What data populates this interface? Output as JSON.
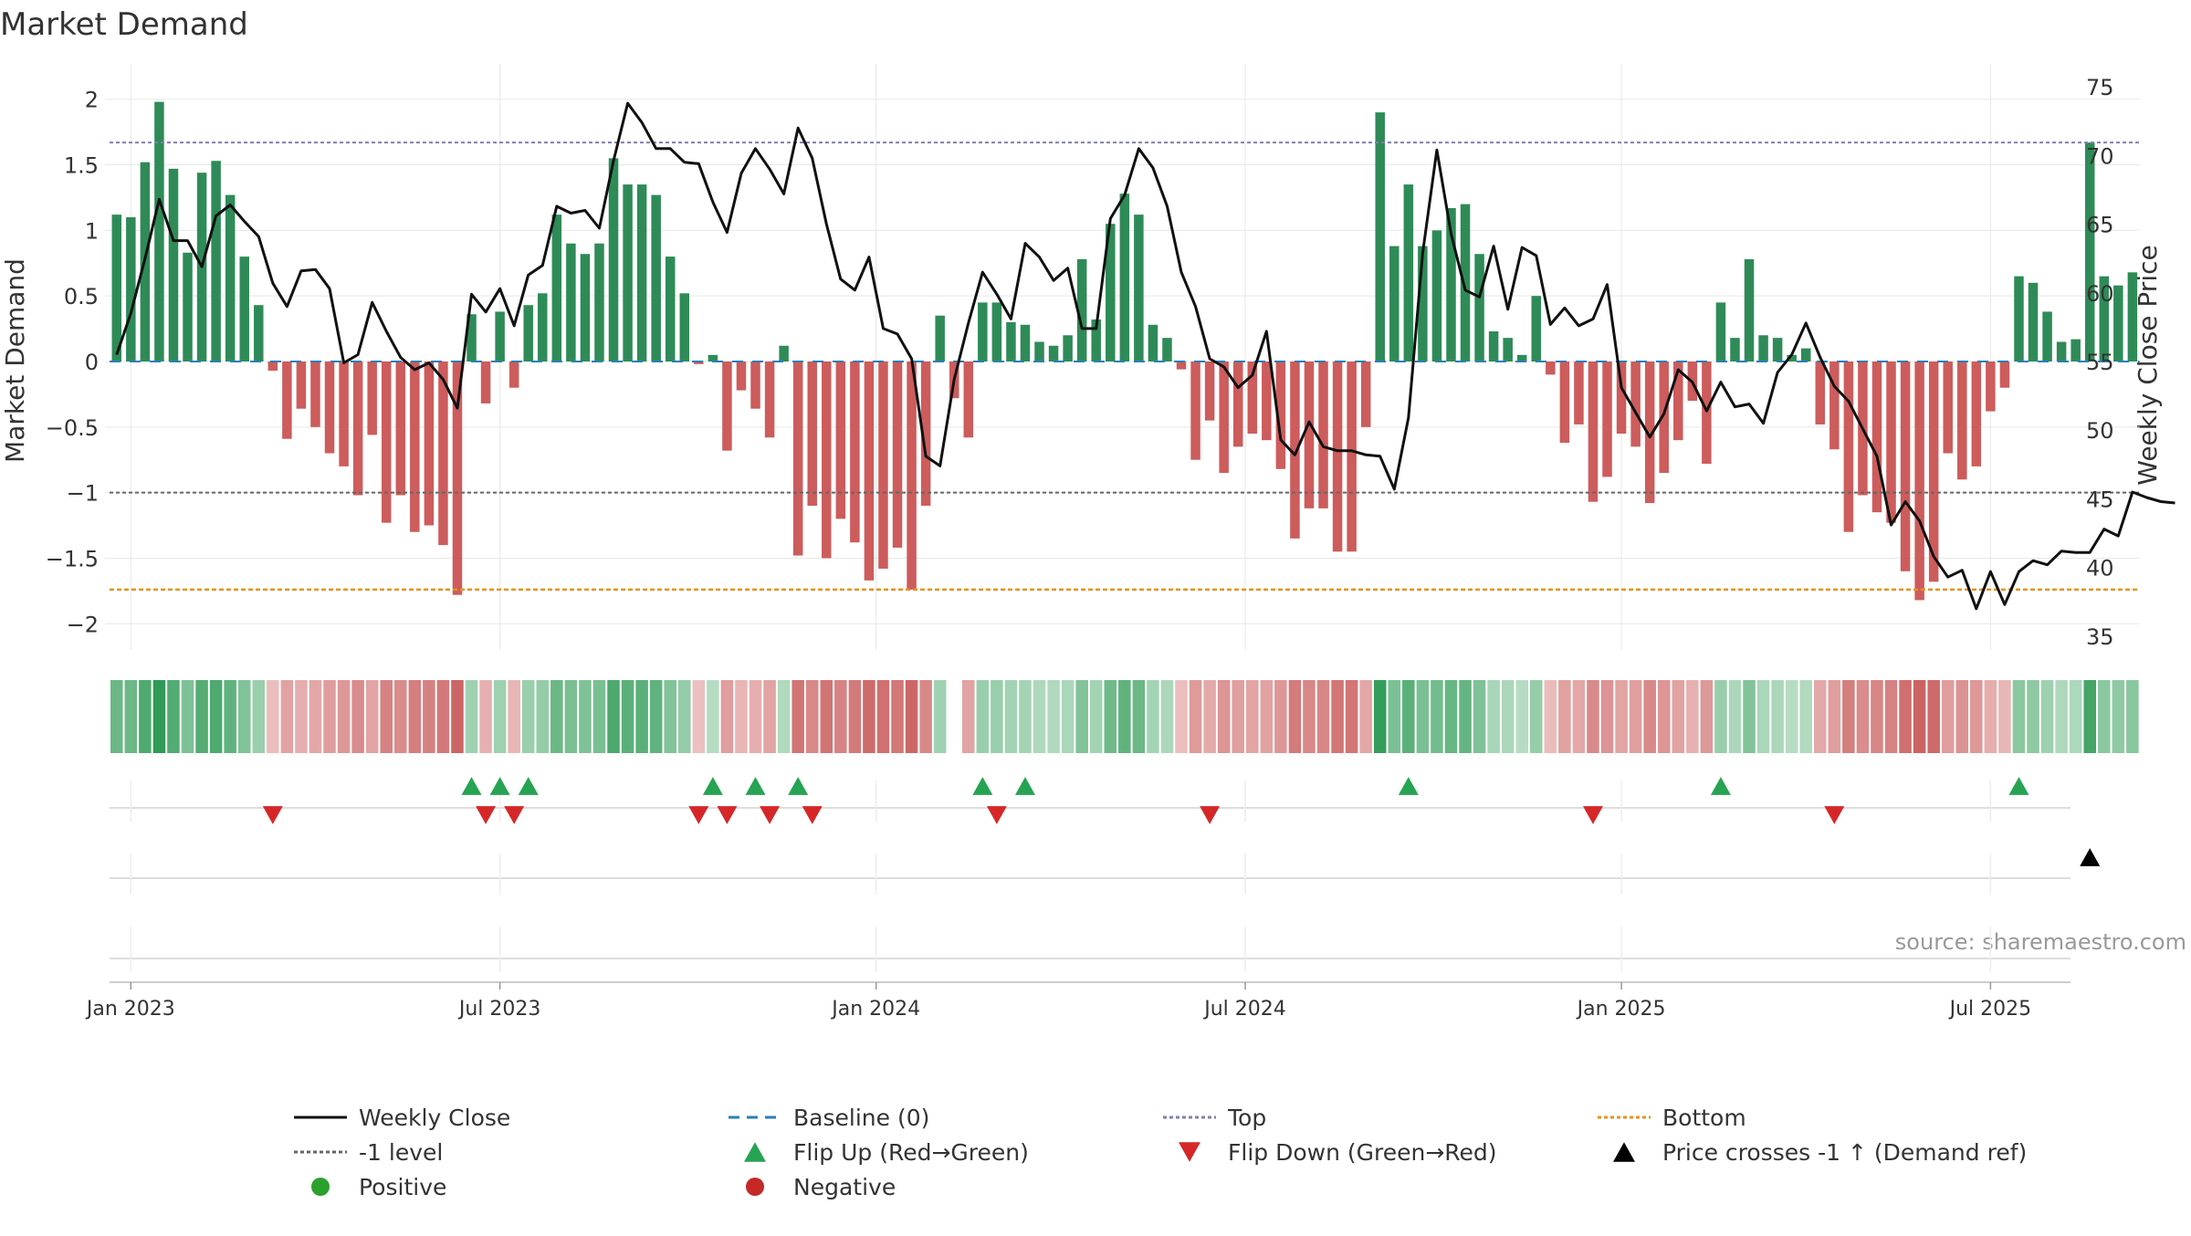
{
  "chart_data": {
    "type": "bar",
    "title": "Market Demand",
    "ylabel_left": "Market Demand",
    "ylabel_right": "Weekly Close Price",
    "ylim_left": [
      -2.2,
      2.2
    ],
    "ylim_right": [
      34,
      76
    ],
    "yticks_left": [
      2,
      1.5,
      1,
      0.5,
      0,
      -0.5,
      -1,
      -1.5,
      -2
    ],
    "ytick_labels_left": [
      "2",
      "1.5",
      "1",
      "0.5",
      "0",
      "−0.5",
      "−1",
      "−1.5",
      "−2"
    ],
    "yticks_right": [
      75,
      70,
      65,
      60,
      55,
      50,
      45,
      40,
      35
    ],
    "ytick_labels_right": [
      "75",
      "70",
      "65",
      "60",
      "55",
      "50",
      "45",
      "40",
      "35"
    ],
    "x_tick_labels": [
      "Jan 2023",
      "Jul 2023",
      "Jan 2024",
      "Jul 2024",
      "Jan 2025",
      "Jul 2025"
    ],
    "x_tick_positions": [
      1,
      27,
      53.5,
      79.5,
      106,
      132
    ],
    "top_level": 1.67,
    "bottom_level": -1.74,
    "minus_one_level": -1,
    "baseline": 0,
    "demand": [
      1.12,
      1.1,
      1.52,
      1.98,
      1.47,
      0.83,
      1.44,
      1.53,
      1.27,
      0.8,
      0.43,
      -0.07,
      -0.59,
      -0.36,
      -0.5,
      -0.7,
      -0.8,
      -1.02,
      -0.56,
      -1.23,
      -1.02,
      -1.3,
      -1.25,
      -1.4,
      -1.78,
      0.36,
      -0.32,
      0.38,
      -0.2,
      0.43,
      0.52,
      1.12,
      0.9,
      0.82,
      0.9,
      1.55,
      1.35,
      1.35,
      1.27,
      0.8,
      0.52,
      -0.02,
      0.05,
      -0.68,
      -0.22,
      -0.36,
      -0.58,
      0.12,
      -1.48,
      -1.1,
      -1.5,
      -1.2,
      -1.38,
      -1.67,
      -1.58,
      -1.42,
      -1.74,
      -1.1,
      0.35,
      -0.28,
      -0.58,
      0.45,
      0.45,
      0.3,
      0.28,
      0.15,
      0.12,
      0.2,
      0.78,
      0.32,
      1.05,
      1.28,
      1.12,
      0.28,
      0.18,
      -0.06,
      -0.75,
      -0.45,
      -0.85,
      -0.65,
      -0.55,
      -0.6,
      -0.82,
      -1.35,
      -1.12,
      -1.12,
      -1.45,
      -1.45,
      -0.5,
      1.9,
      0.88,
      1.35,
      0.88,
      1.0,
      1.17,
      1.2,
      0.82,
      0.23,
      0.18,
      0.05,
      0.5,
      -0.1,
      -0.62,
      -0.48,
      -1.07,
      -0.88,
      -0.55,
      -0.65,
      -1.08,
      -0.85,
      -0.6,
      -0.3,
      -0.78,
      0.45,
      0.18,
      0.78,
      0.2,
      0.18,
      0.05,
      0.1,
      -0.48,
      -0.67,
      -1.3,
      -1.02,
      -1.15,
      -1.23,
      -1.6,
      -1.82,
      -1.68,
      -0.7,
      -0.9,
      -0.8,
      -0.38,
      -0.2,
      0.65,
      0.6,
      0.38,
      0.15,
      0.17,
      1.67,
      0.65,
      0.58,
      0.68
    ],
    "price": [
      55.5,
      58.5,
      62.5,
      66.8,
      63.8,
      63.8,
      61.9,
      65.6,
      66.4,
      65.2,
      64.1,
      60.7,
      59.0,
      61.6,
      61.7,
      60.3,
      54.9,
      55.5,
      59.3,
      57.2,
      55.3,
      54.4,
      54.9,
      53.7,
      51.6,
      59.9,
      58.6,
      60.3,
      57.6,
      61.3,
      62.0,
      66.3,
      65.8,
      66.0,
      64.7,
      69.6,
      73.8,
      72.4,
      70.5,
      70.5,
      69.5,
      69.4,
      66.6,
      64.4,
      68.7,
      70.5,
      69.0,
      67.2,
      72.0,
      69.8,
      65.0,
      61.0,
      60.2,
      62.6,
      57.4,
      57.0,
      55.2,
      48.1,
      47.4,
      53.7,
      57.8,
      61.5,
      59.9,
      58.1,
      63.6,
      62.6,
      60.9,
      61.8,
      57.4,
      57.4,
      65.4,
      67.1,
      70.5,
      69.1,
      66.3,
      61.5,
      59.0,
      55.2,
      54.6,
      53.1,
      54.0,
      57.2,
      49.3,
      48.2,
      50.6,
      48.8,
      48.5,
      48.5,
      48.2,
      48.1,
      45.7,
      50.9,
      62.9,
      70.4,
      64.3,
      60.2,
      59.7,
      63.4,
      58.8,
      63.3,
      62.7,
      57.7,
      58.9,
      57.6,
      58.1,
      60.6,
      53.1,
      51.3,
      49.5,
      51.2,
      54.4,
      53.5,
      51.4,
      53.5,
      51.7,
      51.9,
      50.5,
      54.2,
      55.5,
      57.8,
      55.3,
      53.2,
      52.1,
      50.1,
      48.1,
      43.1,
      44.8,
      43.4,
      40.8,
      39.3,
      39.8,
      37.0,
      39.7,
      37.3,
      39.7,
      40.5,
      40.2,
      41.2,
      41.1,
      41.1,
      42.8,
      42.3,
      45.5,
      45.1,
      44.8,
      44.7
    ],
    "flip_up_indices": [
      25,
      27,
      29,
      42,
      45,
      48,
      61,
      64,
      91,
      113,
      134
    ],
    "flip_down_indices": [
      11,
      26,
      28,
      41,
      43,
      46,
      49,
      62,
      77,
      104,
      121
    ],
    "price_cross_indices": [
      139
    ],
    "heat_gap_indices": [
      59
    ],
    "legend": [
      {
        "key": "weekly_close",
        "label": "Weekly Close",
        "symbol": "line-solid",
        "color": "#111111"
      },
      {
        "key": "baseline",
        "label": "Baseline (0)",
        "symbol": "line-dash",
        "color": "#2a7fb8"
      },
      {
        "key": "top",
        "label": "Top",
        "symbol": "line-dot",
        "color": "#7f7fb5"
      },
      {
        "key": "bottom",
        "label": "Bottom",
        "symbol": "line-dot",
        "color": "#e8911e"
      },
      {
        "key": "minus_one",
        "label": "-1 level",
        "symbol": "line-dot",
        "color": "#666666"
      },
      {
        "key": "flip_up",
        "label": "Flip Up (Red→Green)",
        "symbol": "triangle-up",
        "color": "#26a353"
      },
      {
        "key": "flip_down",
        "label": "Flip Down (Green→Red)",
        "symbol": "triangle-down",
        "color": "#d62728"
      },
      {
        "key": "price_cross",
        "label": "Price crosses -1 ↑ (Demand ref)",
        "symbol": "triangle-up",
        "color": "#000000"
      },
      {
        "key": "positive",
        "label": "Positive",
        "symbol": "circle",
        "color": "#2ca02c"
      },
      {
        "key": "negative",
        "label": "Negative",
        "symbol": "circle",
        "color": "#c62828"
      }
    ],
    "source": "source: sharemaestro.com"
  },
  "colors": {
    "positive_bar": "#2e8b57",
    "negative_bar": "#cd5c5c",
    "price_line": "#111111",
    "baseline": "#2a7fb8",
    "top_line": "#7f7fb5",
    "bottom_line": "#e8911e",
    "minus_one_line": "#666666",
    "flip_up": "#26a353",
    "flip_down": "#d62728",
    "price_cross": "#000000",
    "grid": "#e8e8e8"
  }
}
